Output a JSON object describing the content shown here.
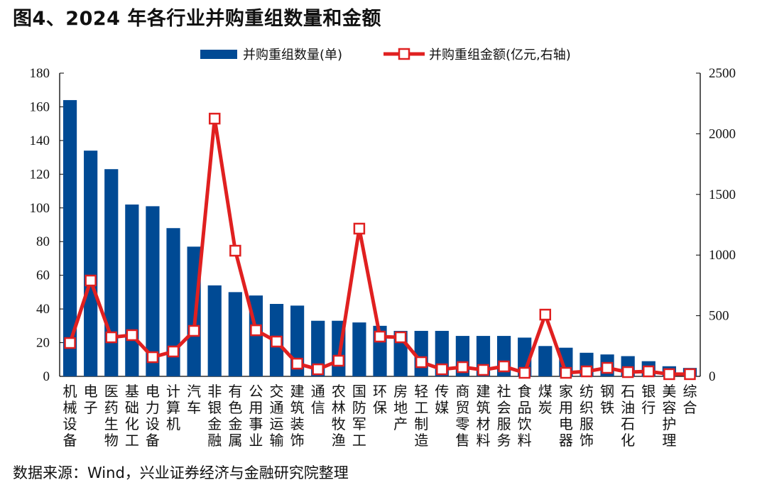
{
  "title": "图4、2024 年各行业并购重组数量和金额",
  "source": "数据来源：Wind，兴业证券经济与金融研究院整理",
  "chart_data": {
    "type": "bar+line",
    "title": "图4、2024 年各行业并购重组数量和金额",
    "categories": [
      "机械设备",
      "电子",
      "医药生物",
      "基础化工",
      "电力设备",
      "计算机",
      "汽车",
      "非银金融",
      "有色金属",
      "公用事业",
      "交通运输",
      "建筑装饰",
      "通信",
      "农林牧渔",
      "国防军工",
      "环保",
      "房地产",
      "轻工制造",
      "传媒",
      "商贸零售",
      "建筑材料",
      "社会服务",
      "食品饮料",
      "煤炭",
      "家用电器",
      "纺织服饰",
      "钢铁",
      "石油石化",
      "银行",
      "美容护理",
      "综合"
    ],
    "series": [
      {
        "name": "并购重组数量(单)",
        "type": "bar",
        "axis": "left",
        "color": "#004a94",
        "values": [
          164,
          134,
          123,
          102,
          101,
          88,
          77,
          54,
          50,
          48,
          43,
          42,
          33,
          33,
          32,
          30,
          27,
          27,
          27,
          24,
          24,
          24,
          23,
          18,
          17,
          14,
          13,
          12,
          9,
          6,
          5
        ]
      },
      {
        "name": "并购重组金额(亿元,右轴)",
        "type": "line",
        "axis": "right",
        "color": "#e02020",
        "values": [
          275,
          790,
          322,
          340,
          158,
          205,
          375,
          2125,
          1036,
          380,
          287,
          105,
          58,
          129,
          1218,
          328,
          322,
          117,
          58,
          76,
          53,
          82,
          29,
          509,
          29,
          41,
          70,
          35,
          41,
          18,
          18
        ]
      }
    ],
    "y_left": {
      "range": [
        0,
        180
      ],
      "ticks": [
        0,
        20,
        40,
        60,
        80,
        100,
        120,
        140,
        160,
        180
      ]
    },
    "y_right": {
      "range": [
        0,
        2500
      ],
      "ticks": [
        0,
        500,
        1000,
        1500,
        2000,
        2500
      ]
    },
    "legend": "top-center",
    "grid": false
  }
}
